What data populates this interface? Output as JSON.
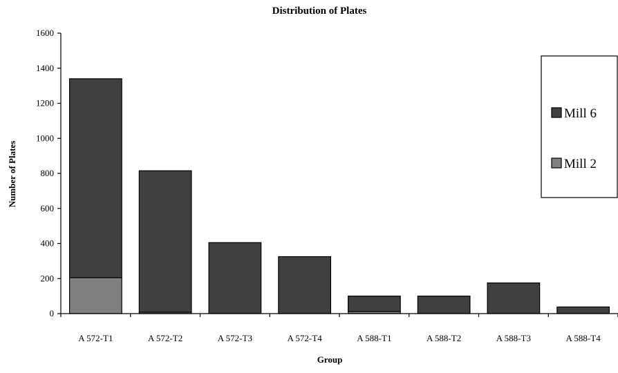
{
  "chart_data": {
    "type": "bar",
    "stacked": true,
    "title": "Distribution of Plates",
    "xlabel": "Group",
    "ylabel": "Number of Plates",
    "categories": [
      "A 572-T1",
      "A 572-T2",
      "A 572-T3",
      "A 572-T4",
      "A 588-T1",
      "A 588-T2",
      "A 588-T3",
      "A 588-T4"
    ],
    "series": [
      {
        "name": "Mill 2",
        "values": [
          205,
          8,
          0,
          0,
          12,
          0,
          0,
          0
        ],
        "color": "#808080"
      },
      {
        "name": "Mill 6",
        "values": [
          1135,
          807,
          405,
          325,
          88,
          100,
          175,
          38
        ],
        "color": "#404040"
      }
    ],
    "ylim": [
      0,
      1600
    ],
    "yticks": [
      "0",
      "200",
      "400",
      "600",
      "800",
      "1000",
      "1200",
      "1400",
      "1600"
    ],
    "legend": {
      "position": "right",
      "entries": [
        "Mill 6",
        "Mill 2"
      ]
    },
    "grid": false
  }
}
